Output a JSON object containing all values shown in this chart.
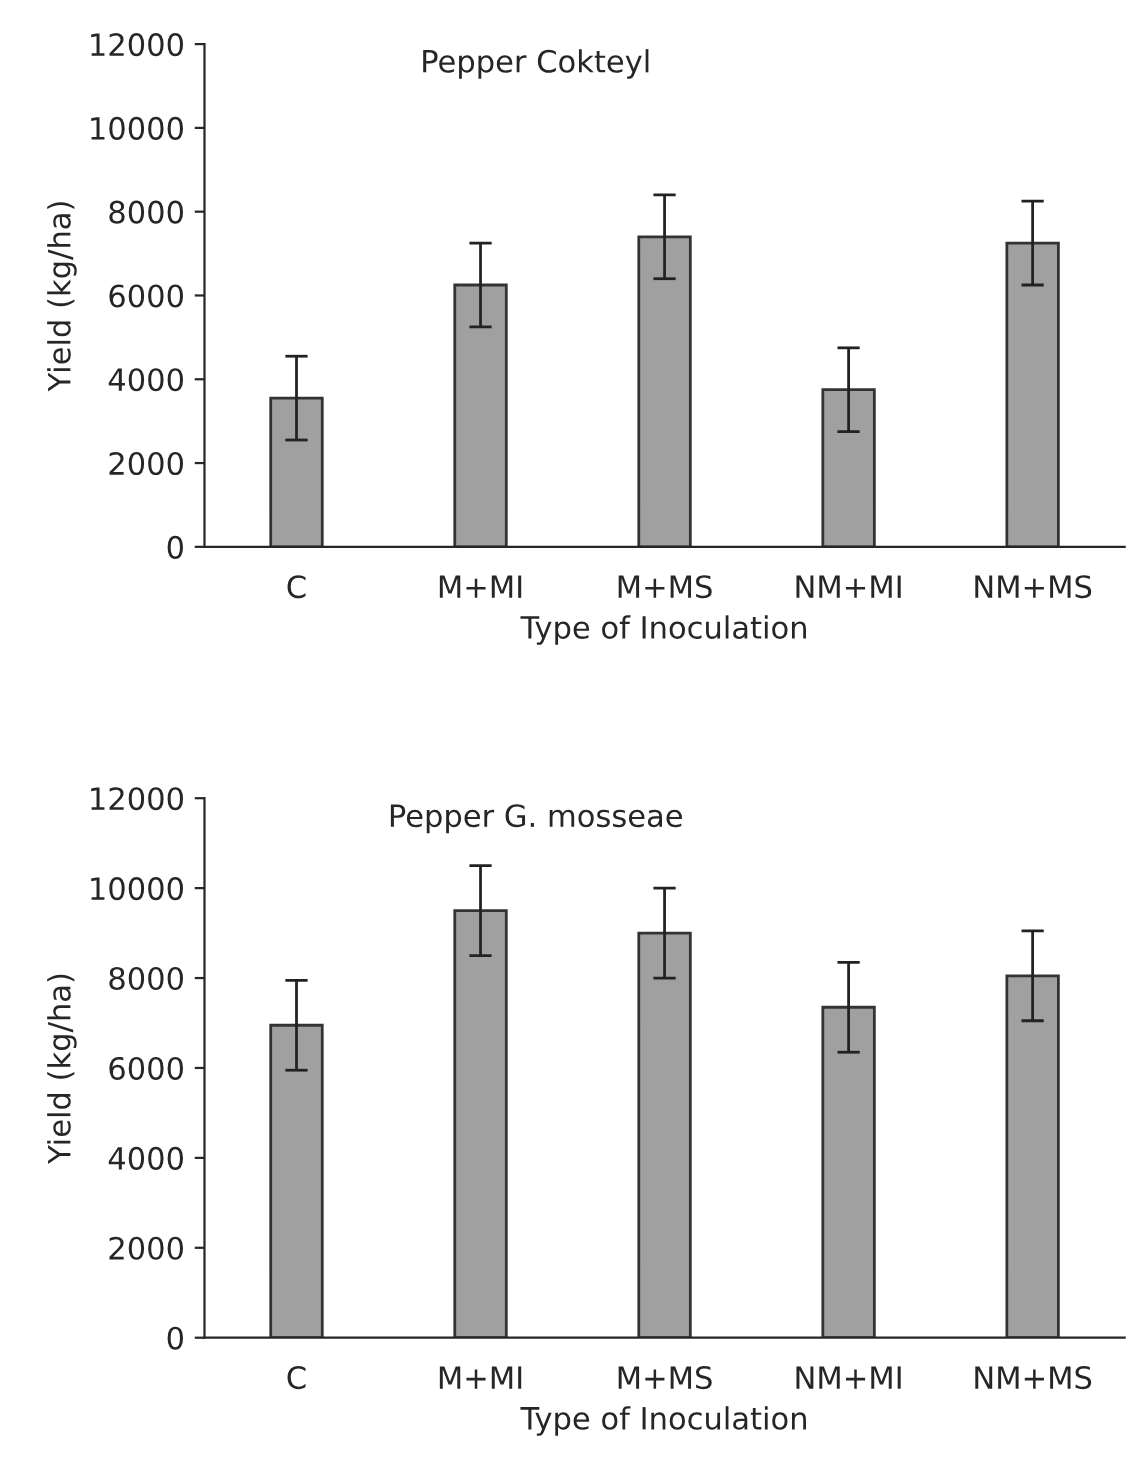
{
  "chart_data": [
    {
      "type": "bar",
      "title": "Pepper Cokteyl",
      "xlabel": "Type of Inoculation",
      "ylabel": "Yield (kg/ha)",
      "categories": [
        "C",
        "M+MI",
        "M+MS",
        "NM+MI",
        "NM+MS"
      ],
      "color": "#a0a0a0",
      "values": [
        3550,
        6250,
        7400,
        3750,
        7250
      ],
      "errors": [
        1000,
        1000,
        1000,
        1000,
        1000
      ],
      "ylim": [
        0,
        12000
      ],
      "yticks": [
        0,
        2000,
        4000,
        6000,
        8000,
        10000,
        12000
      ],
      "grid": false,
      "legend": false
    },
    {
      "type": "bar",
      "title": "Pepper G. mosseae",
      "xlabel": "Type of Inoculation",
      "ylabel": "Yield (kg/ha)",
      "categories": [
        "C",
        "M+MI",
        "M+MS",
        "NM+MI",
        "NM+MS"
      ],
      "color": "#a0a0a0",
      "values": [
        6950,
        9500,
        9000,
        7350,
        8050
      ],
      "errors": [
        1000,
        1000,
        1000,
        1000,
        1000
      ],
      "ylim": [
        0,
        12000
      ],
      "yticks": [
        0,
        2000,
        4000,
        6000,
        8000,
        10000,
        12000
      ],
      "grid": false,
      "legend": false
    }
  ]
}
